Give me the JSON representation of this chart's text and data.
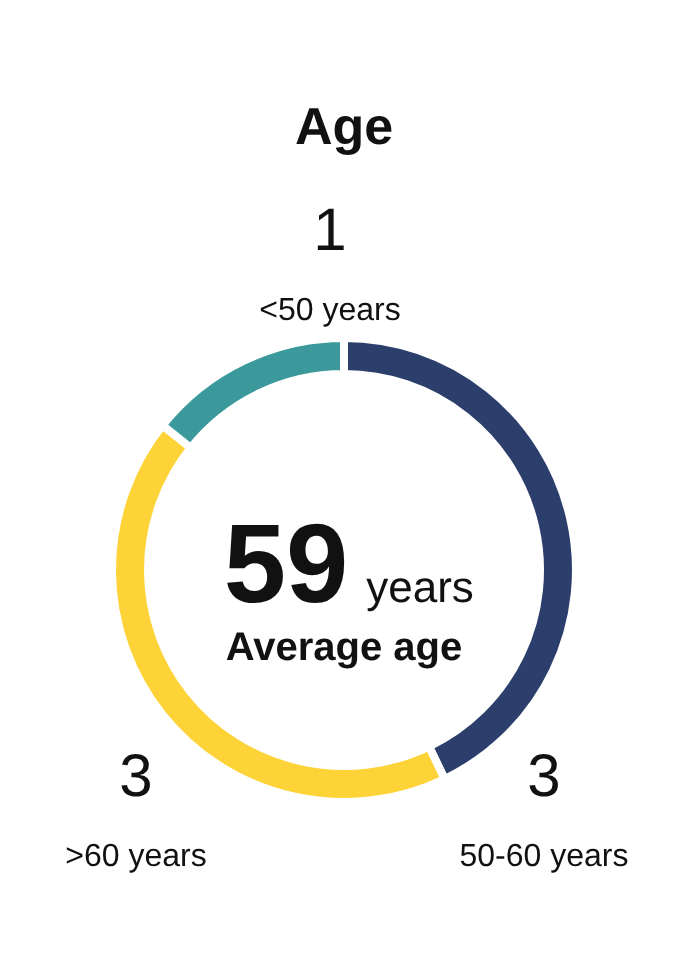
{
  "chart_data": {
    "type": "donut",
    "title": "Age",
    "categories": [
      "50-60 years",
      ">60 years",
      "<50 years"
    ],
    "values": [
      3,
      3,
      1
    ],
    "colors": [
      "#2c3e6b",
      "#fdd337",
      "#3b999b"
    ],
    "data_labels": true,
    "annotations": [
      "59",
      "years",
      "Average age"
    ]
  }
}
